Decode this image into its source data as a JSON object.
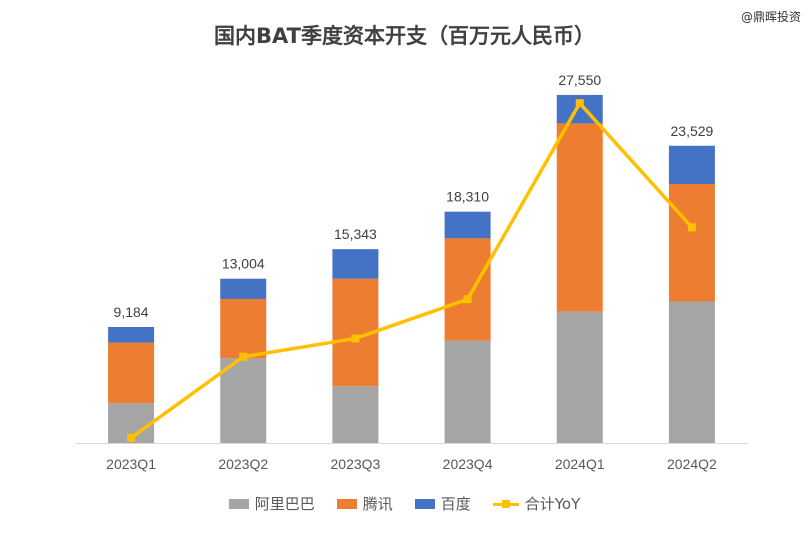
{
  "header": {
    "title": "国内BAT季度资本开支（百万元人民币）",
    "watermark": "@鼎晖投资"
  },
  "legend": {
    "items": [
      {
        "label": "阿里巴巴",
        "color": "#a5a5a5",
        "kind": "bar"
      },
      {
        "label": "腾讯",
        "color": "#ed7d31",
        "kind": "bar"
      },
      {
        "label": "百度",
        "color": "#4472c4",
        "kind": "bar"
      },
      {
        "label": "合计YoY",
        "color": "#ffc000",
        "kind": "line"
      }
    ]
  },
  "chart_data": {
    "type": "bar",
    "stacked": true,
    "categories": [
      "2023Q1",
      "2023Q2",
      "2023Q3",
      "2023Q4",
      "2024Q1",
      "2024Q2"
    ],
    "series": [
      {
        "name": "阿里巴巴",
        "color": "#a5a5a5",
        "values": [
          3150,
          6700,
          4500,
          8100,
          10400,
          11200
        ]
      },
      {
        "name": "腾讯",
        "color": "#ed7d31",
        "values": [
          4800,
          4700,
          8500,
          8100,
          14900,
          9300
        ]
      },
      {
        "name": "百度",
        "color": "#4472c4",
        "values": [
          1234,
          1604,
          2343,
          2110,
          2250,
          3029
        ]
      }
    ],
    "totals": [
      9184,
      13004,
      15343,
      18310,
      27550,
      23529
    ],
    "total_labels": [
      "9,184",
      "13,004",
      "15,343",
      "18,310",
      "27,550",
      "23,529"
    ],
    "line": {
      "name": "合计YoY",
      "color": "#ffc000",
      "relative_values": [
        0.04,
        0.66,
        0.8,
        1.1,
        2.6,
        1.65
      ]
    },
    "ylim": [
      0,
      30000
    ],
    "grid": false,
    "legend_position": "bottom"
  }
}
